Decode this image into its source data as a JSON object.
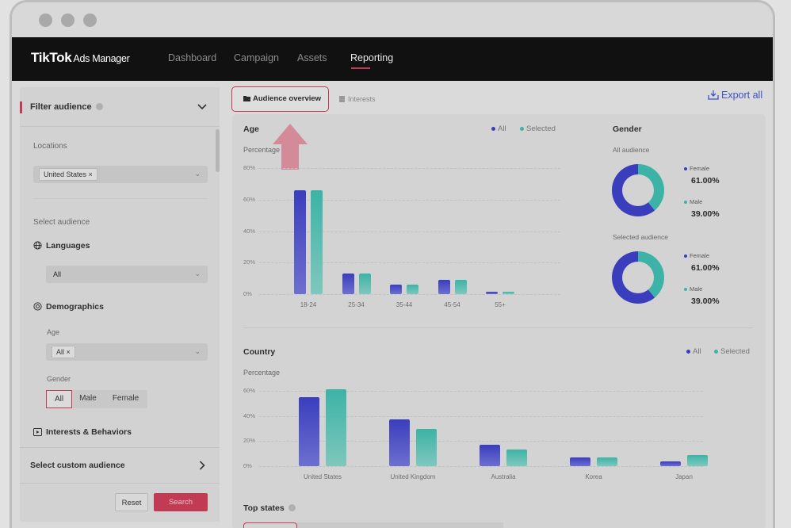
{
  "app": {
    "logo": "TikTok",
    "logo_sub": "Ads Manager",
    "nav": [
      "Dashboard",
      "Campaign",
      "Assets",
      "Reporting"
    ],
    "active_nav": "Reporting"
  },
  "sidebar": {
    "filter_title": "Filter audience",
    "locations_label": "Locations",
    "location_chip": "United States",
    "select_audience_label": "Select audience",
    "languages_label": "Languages",
    "languages_value": "All",
    "demographics_label": "Demographics",
    "age_label": "Age",
    "age_chip": "All",
    "gender_label": "Gender",
    "gender_options": [
      "All",
      "Male",
      "Female"
    ],
    "gender_selected": "All",
    "interests_label": "Interests & Behaviors",
    "custom_audience_label": "Select custom audience",
    "reset_label": "Reset",
    "search_label": "Search"
  },
  "tabs": {
    "audience_overview": "Audience overview",
    "interests": "Interests",
    "export": "Export all"
  },
  "legend": {
    "all": "All",
    "selected": "Selected"
  },
  "colors": {
    "accent": "#c23b54",
    "all_series": "#3a3ebd",
    "selected_series": "#3cb3a6",
    "link": "#3f51c9"
  },
  "age": {
    "title": "Age",
    "y_label": "Percentage",
    "y_ticks": [
      "80%",
      "60%",
      "40%",
      "20%",
      "0%"
    ],
    "chart_data": {
      "type": "bar",
      "categories": [
        "18-24",
        "25-34",
        "35-44",
        "45-54",
        "55+"
      ],
      "series": [
        {
          "name": "All",
          "values": [
            66,
            13,
            6,
            9,
            1.5
          ]
        },
        {
          "name": "Selected",
          "values": [
            66,
            13,
            6,
            9,
            1.5
          ]
        }
      ],
      "ylim": [
        0,
        80
      ]
    }
  },
  "gender": {
    "title": "Gender",
    "all_label": "All audience",
    "selected_label": "Selected audience",
    "female_label": "Female",
    "male_label": "Male",
    "female_all": "61.00%",
    "male_all": "39.00%",
    "female_sel": "61.00%",
    "male_sel": "39.00%"
  },
  "country": {
    "title": "Country",
    "y_label": "Percentage",
    "y_ticks": [
      "60%",
      "40%",
      "20%",
      "0%"
    ],
    "chart_data": {
      "type": "bar",
      "categories": [
        "United States",
        "United Kingdom",
        "Australia",
        "Korea",
        "Japan"
      ],
      "series": [
        {
          "name": "All",
          "values": [
            55,
            37,
            17,
            7,
            4
          ]
        },
        {
          "name": "Selected",
          "values": [
            61,
            30,
            13,
            7,
            9
          ]
        }
      ],
      "ylim": [
        0,
        60
      ]
    }
  },
  "top_states": {
    "title": "Top states"
  }
}
